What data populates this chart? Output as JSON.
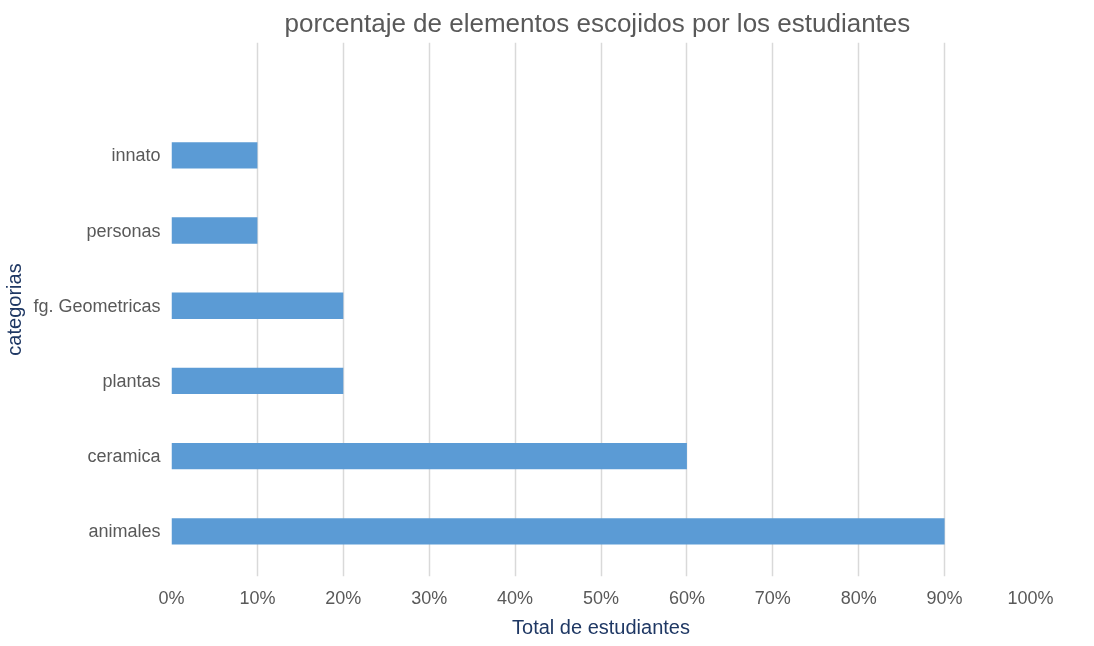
{
  "chart_data": {
    "type": "bar",
    "orientation": "horizontal",
    "title": "porcentaje de elementos escojidos por  los estudiantes",
    "xlabel": "Total de estudiantes",
    "ylabel": "categorias",
    "categories": [
      null,
      "innato",
      "personas",
      "fg. Geometricas",
      "plantas",
      "ceramica",
      "animales"
    ],
    "values": [
      null,
      10,
      10,
      20,
      20,
      60,
      90
    ],
    "color": "#5b9bd5",
    "xlim": [
      0,
      100
    ],
    "xticks": [
      {
        "value": 0,
        "label": "0%"
      },
      {
        "value": 10,
        "label": "10%"
      },
      {
        "value": 20,
        "label": "20%"
      },
      {
        "value": 30,
        "label": "30%"
      },
      {
        "value": 40,
        "label": "40%"
      },
      {
        "value": 50,
        "label": "50%"
      },
      {
        "value": 60,
        "label": "60%"
      },
      {
        "value": 70,
        "label": "70%"
      },
      {
        "value": 80,
        "label": "80%"
      },
      {
        "value": 90,
        "label": "90%"
      },
      {
        "value": 100,
        "label": "100%"
      }
    ],
    "grid": "x"
  }
}
